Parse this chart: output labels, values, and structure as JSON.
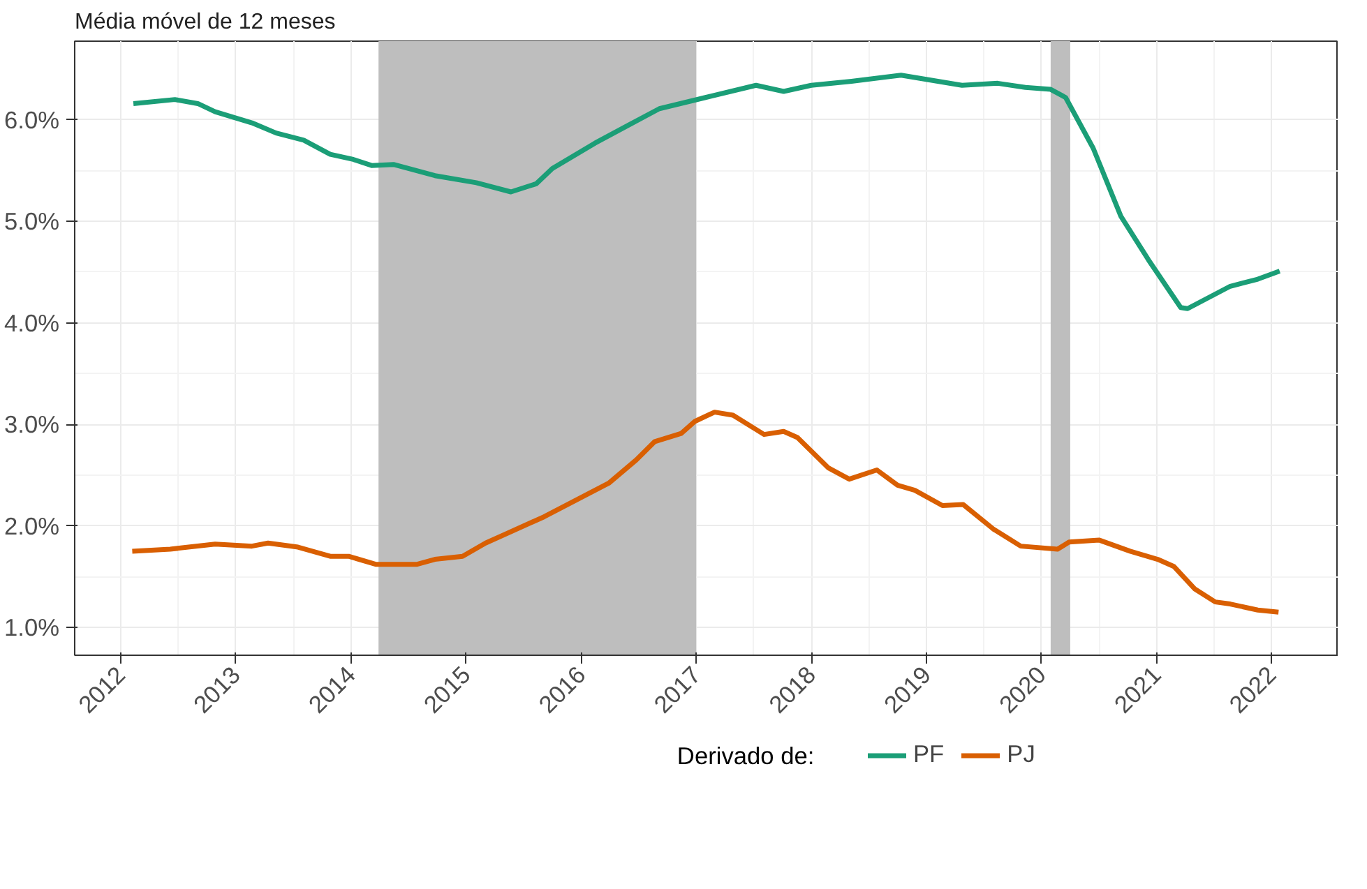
{
  "chart_data": {
    "type": "line",
    "subtitle": "Média móvel de 12 meses",
    "legend_title": "Derivado de:",
    "legend": "bottom",
    "grid": true,
    "line_style": "solid",
    "xlim": [
      2011.6,
      2022.58
    ],
    "xticks": [
      2012,
      2013,
      2014,
      2015,
      2016,
      2017,
      2018,
      2019,
      2020,
      2021,
      2022
    ],
    "ylim": [
      0.725,
      6.775
    ],
    "yticks": [
      {
        "value": 1,
        "label": "1.0%"
      },
      {
        "value": 2,
        "label": "2.0%"
      },
      {
        "value": 3,
        "label": "3.0%"
      },
      {
        "value": 4,
        "label": "4.0%"
      },
      {
        "value": 5,
        "label": "5.0%"
      },
      {
        "value": 6,
        "label": "6.0%"
      }
    ],
    "bands": [
      {
        "axis": "x",
        "from": 2014.24,
        "to": 2017.0,
        "color": "#bebebe"
      },
      {
        "axis": "x",
        "from": 2020.08,
        "to": 2020.25,
        "color": "#bebebe"
      }
    ],
    "series": [
      {
        "name": "PF",
        "color": "#1b9e77",
        "x": [
          2012.11,
          2012.47,
          2012.67,
          2012.82,
          2013.14,
          2013.35,
          2013.59,
          2013.82,
          2014.02,
          2014.18,
          2014.37,
          2014.73,
          2015.09,
          2015.39,
          2015.61,
          2015.75,
          2016.12,
          2016.4,
          2016.68,
          2017.08,
          2017.52,
          2017.76,
          2018.0,
          2018.35,
          2018.78,
          2019.31,
          2019.62,
          2019.86,
          2020.08,
          2020.21,
          2020.45,
          2020.69,
          2020.93,
          2021.21,
          2021.27,
          2021.64,
          2021.88,
          2022.07
        ],
        "values": [
          6.16,
          6.2,
          6.16,
          6.08,
          5.97,
          5.87,
          5.8,
          5.66,
          5.61,
          5.55,
          5.56,
          5.45,
          5.38,
          5.29,
          5.37,
          5.52,
          5.77,
          5.94,
          6.11,
          6.22,
          6.34,
          6.28,
          6.34,
          6.38,
          6.44,
          6.34,
          6.36,
          6.32,
          6.3,
          6.22,
          5.72,
          5.05,
          4.62,
          4.15,
          4.14,
          4.36,
          4.43,
          4.51
        ]
      },
      {
        "name": "PJ",
        "color": "#d95f02",
        "x": [
          2012.1,
          2012.43,
          2012.82,
          2013.14,
          2013.28,
          2013.54,
          2013.82,
          2013.98,
          2014.22,
          2014.57,
          2014.73,
          2014.97,
          2015.17,
          2015.68,
          2016.24,
          2016.48,
          2016.64,
          2016.87,
          2016.99,
          2017.16,
          2017.32,
          2017.59,
          2017.76,
          2017.88,
          2018.15,
          2018.33,
          2018.57,
          2018.75,
          2018.9,
          2019.14,
          2019.32,
          2019.58,
          2019.82,
          2020.14,
          2020.24,
          2020.5,
          2020.77,
          2021.01,
          2021.15,
          2021.33,
          2021.51,
          2021.64,
          2021.88,
          2022.06
        ],
        "values": [
          1.75,
          1.77,
          1.82,
          1.8,
          1.83,
          1.79,
          1.7,
          1.7,
          1.62,
          1.62,
          1.67,
          1.7,
          1.83,
          2.09,
          2.42,
          2.65,
          2.83,
          2.91,
          3.03,
          3.12,
          3.09,
          2.9,
          2.93,
          2.87,
          2.57,
          2.46,
          2.55,
          2.4,
          2.35,
          2.2,
          2.21,
          1.97,
          1.8,
          1.77,
          1.84,
          1.86,
          1.75,
          1.67,
          1.6,
          1.38,
          1.25,
          1.23,
          1.17,
          1.15
        ]
      }
    ]
  }
}
